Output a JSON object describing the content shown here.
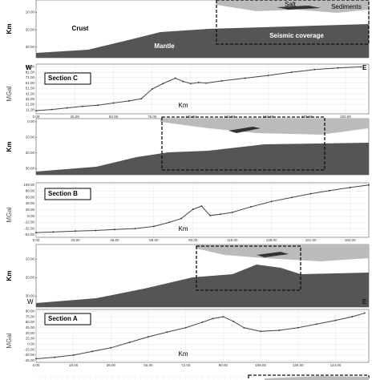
{
  "chart_data": [
    {
      "type": "line",
      "title": "Section C",
      "y_label": "MGal",
      "x_label": "Km",
      "west": "W",
      "east": "E",
      "color": "#444",
      "grid": true,
      "x": [
        0,
        10,
        20,
        30,
        40,
        50,
        60,
        68,
        75,
        82,
        90,
        95,
        100,
        105,
        110,
        120,
        135,
        150,
        165,
        180,
        195,
        210
      ],
      "values": [
        10,
        12,
        15,
        18,
        20,
        24,
        28,
        32,
        50,
        60,
        70,
        64,
        60,
        62,
        61,
        65,
        70,
        75,
        81,
        86,
        89,
        91
      ],
      "xlim": [
        0,
        215
      ],
      "ylim": [
        4,
        96
      ],
      "xticks": [
        {
          "value": 0,
          "label": "0.00"
        },
        {
          "value": 25,
          "label": "25.00"
        },
        {
          "value": 50,
          "label": "50.00"
        },
        {
          "value": 75,
          "label": "75.00"
        },
        {
          "value": 100,
          "label": "100.00"
        },
        {
          "value": 125,
          "label": "125.00"
        },
        {
          "value": 150,
          "label": "150.00"
        },
        {
          "value": 175,
          "label": "175.00"
        },
        {
          "value": 200,
          "label": "200.00"
        }
      ],
      "yticks": [
        {
          "value": 91,
          "label": "91.00"
        },
        {
          "value": 81,
          "label": "81.00"
        },
        {
          "value": 71,
          "label": "71.00"
        },
        {
          "value": 61,
          "label": "61.00"
        },
        {
          "value": 51,
          "label": "51.00"
        },
        {
          "value": 41,
          "label": "41.00"
        },
        {
          "value": 31,
          "label": "31.00"
        },
        {
          "value": 21,
          "label": "21.00"
        },
        {
          "value": 11,
          "label": "11.00"
        }
      ]
    },
    {
      "type": "line",
      "title": "Section B",
      "y_label": "MGal",
      "x_label": "Km",
      "color": "#444",
      "grid": true,
      "x": [
        0,
        10,
        23,
        35,
        46,
        58,
        69,
        78,
        85,
        92,
        97,
        102,
        108,
        115,
        126,
        138,
        150,
        161,
        172,
        184,
        195
      ],
      "values": [
        -45,
        -43,
        -40,
        -38,
        -35,
        -32,
        -25,
        -12,
        0,
        30,
        40,
        10,
        14,
        20,
        38,
        55,
        68,
        80,
        90,
        100,
        108
      ],
      "xlim": [
        0,
        195
      ],
      "ylim": [
        -60,
        115
      ],
      "xticks": [
        {
          "value": 0,
          "label": "0.00"
        },
        {
          "value": 23,
          "label": "23.00"
        },
        {
          "value": 46,
          "label": "46.00"
        },
        {
          "value": 69,
          "label": "69.00"
        },
        {
          "value": 92,
          "label": "92.00"
        },
        {
          "value": 115,
          "label": "115.00"
        },
        {
          "value": 138,
          "label": "138.00"
        },
        {
          "value": 161,
          "label": "161.00"
        },
        {
          "value": 184,
          "label": "184.00"
        }
      ],
      "yticks": [
        {
          "value": 108,
          "label": "108.00"
        },
        {
          "value": 88,
          "label": "88.00"
        },
        {
          "value": 68,
          "label": "68.00"
        },
        {
          "value": 48,
          "label": "48.00"
        },
        {
          "value": 28,
          "label": "28.00"
        },
        {
          "value": 8,
          "label": "8.00"
        },
        {
          "value": -12,
          "label": "-12.00"
        },
        {
          "value": -32,
          "label": "-32.00"
        },
        {
          "value": -52,
          "label": "-52.00"
        }
      ]
    },
    {
      "type": "line",
      "title": "Section A",
      "y_label": "MGal",
      "x_label": "Km",
      "color": "#444",
      "grid": true,
      "x": [
        0,
        9,
        18,
        27,
        36,
        45,
        54,
        63,
        72,
        80,
        85,
        90,
        95,
        100,
        108,
        117,
        126,
        135,
        144,
        152,
        158
      ],
      "values": [
        -40,
        -36,
        -30,
        -20,
        -10,
        5,
        20,
        33,
        45,
        60,
        70,
        75,
        62,
        45,
        35,
        38,
        45,
        55,
        65,
        75,
        85
      ],
      "xlim": [
        0,
        160
      ],
      "ylim": [
        -50,
        95
      ],
      "xticks": [
        {
          "value": 0,
          "label": "0.00"
        },
        {
          "value": 18,
          "label": "18.00"
        },
        {
          "value": 36,
          "label": "36.00"
        },
        {
          "value": 54,
          "label": "54.00"
        },
        {
          "value": 72,
          "label": "72.00"
        },
        {
          "value": 90,
          "label": "90.00"
        },
        {
          "value": 108,
          "label": "108.00"
        },
        {
          "value": 126,
          "label": "126.00"
        },
        {
          "value": 144,
          "label": "144.00"
        }
      ],
      "yticks": [
        {
          "value": 90,
          "label": "90.00"
        },
        {
          "value": 75,
          "label": "75.00"
        },
        {
          "value": 60,
          "label": "60.00"
        },
        {
          "value": 45,
          "label": "45.00"
        },
        {
          "value": 30,
          "label": "30.00"
        },
        {
          "value": 15,
          "label": "15.00"
        },
        {
          "value": 0,
          "label": "0.00"
        },
        {
          "value": -15,
          "label": "-15.00"
        },
        {
          "value": -30,
          "label": "-30.00"
        },
        {
          "value": -45,
          "label": "-45.00"
        }
      ]
    }
  ],
  "cross_sections": [
    {
      "y_label": "Km",
      "crust": "Crust",
      "mantle": "Mantle",
      "salt": "Salt",
      "sediments": "Sediments",
      "coverage": "Seismic coverage",
      "ylim": [
        3,
        36
      ],
      "yticks": [
        {
          "value": 10,
          "label": "10.00"
        },
        {
          "value": 20,
          "label": "20.00"
        },
        {
          "value": 30,
          "label": "30.00"
        }
      ]
    },
    {
      "y_label": "Km",
      "ylim": [
        -2,
        34
      ],
      "yticks": [
        {
          "value": 0,
          "label": "0.00"
        },
        {
          "value": 10,
          "label": "10.00"
        },
        {
          "value": 20,
          "label": "20.00"
        },
        {
          "value": 30,
          "label": "30.00"
        }
      ]
    },
    {
      "y_label": "Km",
      "west": "W",
      "east": "E",
      "ylim": [
        2,
        36
      ],
      "yticks": [
        {
          "value": 10,
          "label": "10.00"
        },
        {
          "value": 20,
          "label": "20.00"
        },
        {
          "value": 30,
          "label": "30.00"
        }
      ]
    }
  ]
}
